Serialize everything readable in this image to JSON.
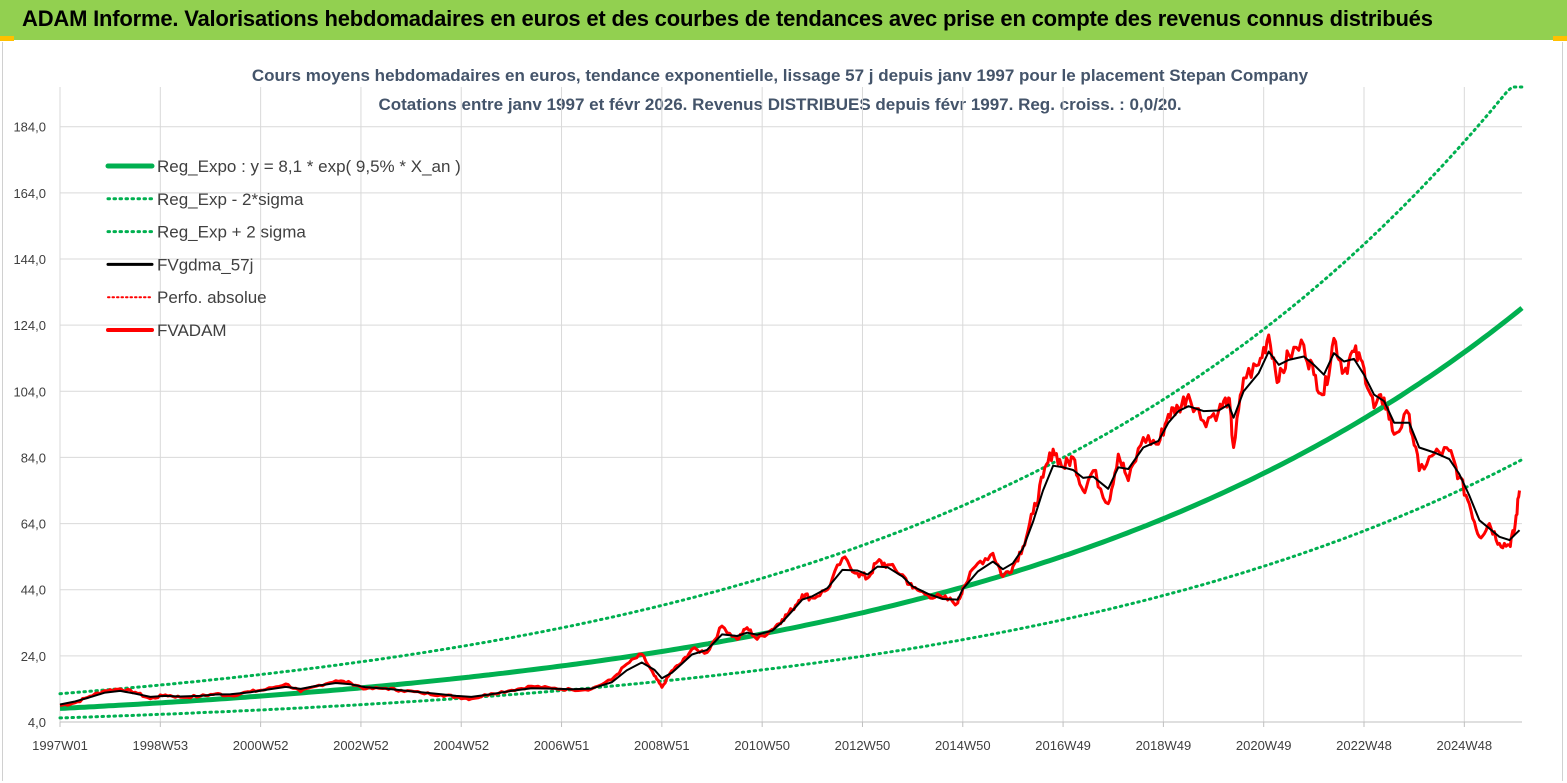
{
  "header": {
    "title": "ADAM Informe. Valorisations hebdomadaires en euros et des courbes de tendances avec prise en compte des revenus connus distribués"
  },
  "colors": {
    "header_bg": "#92d050",
    "header_accent": "#ffc000",
    "trend": "#00b050",
    "price": "#ff0000",
    "smooth": "#000000",
    "title": "#44546a"
  },
  "chart_data": {
    "type": "line",
    "title_line1": "Cours moyens hebdomadaires en euros, tendance exponentielle, lissage 57 j depuis janv 1997 pour le placement Stepan Company",
    "title_line2": "Cotations entre janv 1997 et févr 2026. Revenus DISTRIBUES depuis févr 1997. Reg. croiss. : 0,0/20.",
    "xlabel": "",
    "ylabel": "",
    "ylim": [
      4,
      196
    ],
    "yticks": [
      "4,0",
      "24,0",
      "44,0",
      "64,0",
      "84,0",
      "104,0",
      "124,0",
      "144,0",
      "164,0",
      "184,0"
    ],
    "xlim": [
      1997.0,
      2026.15
    ],
    "xticks": [
      {
        "label": "1997W01",
        "x": 1997.0
      },
      {
        "label": "1998W53",
        "x": 1999.0
      },
      {
        "label": "2000W52",
        "x": 2001.0
      },
      {
        "label": "2002W52",
        "x": 2003.0
      },
      {
        "label": "2004W52",
        "x": 2005.0
      },
      {
        "label": "2006W51",
        "x": 2007.0
      },
      {
        "label": "2008W51",
        "x": 2009.0
      },
      {
        "label": "2010W50",
        "x": 2011.0
      },
      {
        "label": "2012W50",
        "x": 2013.0
      },
      {
        "label": "2014W50",
        "x": 2015.0
      },
      {
        "label": "2016W49",
        "x": 2017.0
      },
      {
        "label": "2018W49",
        "x": 2019.0
      },
      {
        "label": "2020W49",
        "x": 2021.0
      },
      {
        "label": "2022W48",
        "x": 2023.0
      },
      {
        "label": "2024W48",
        "x": 2025.0
      }
    ],
    "grid": true,
    "legend_position": "top-left",
    "regression": {
      "a": 8.1,
      "rate": 0.095,
      "sigma_factor": 1.55
    },
    "series": [
      {
        "name": "Reg_Expo : y = 8,1 * exp( 9,5% *  X_an )",
        "style": "trend"
      },
      {
        "name": "Reg_Exp - 2*sigma",
        "style": "trend-low"
      },
      {
        "name": "Reg_Exp + 2 sigma",
        "style": "trend-high"
      },
      {
        "name": "FVgdma_57j",
        "style": "smooth"
      },
      {
        "name": "Perfo. absolue",
        "style": "dotted-red"
      },
      {
        "name": "FVADAM",
        "style": "price"
      }
    ],
    "price_x": [
      1997.0,
      1997.3,
      1997.6,
      1997.9,
      1998.2,
      1998.5,
      1998.8,
      1999.1,
      1999.4,
      1999.8,
      2000.1,
      2000.4,
      2000.8,
      2001.1,
      2001.5,
      2001.8,
      2002.1,
      2002.5,
      2002.8,
      2003.1,
      2003.5,
      2003.8,
      2004.2,
      2004.6,
      2004.9,
      2005.2,
      2005.6,
      2006.0,
      2006.4,
      2006.8,
      2007.2,
      2007.6,
      2008.0,
      2008.3,
      2008.6,
      2008.85,
      2009.0,
      2009.2,
      2009.4,
      2009.6,
      2009.9,
      2010.2,
      2010.5,
      2010.7,
      2010.9,
      2011.2,
      2011.4,
      2011.6,
      2011.8,
      2012.0,
      2012.3,
      2012.6,
      2012.9,
      2013.1,
      2013.3,
      2013.5,
      2013.8,
      2014.0,
      2014.3,
      2014.6,
      2014.9,
      2015.0,
      2015.3,
      2015.6,
      2015.8,
      2016.0,
      2016.2,
      2016.4,
      2016.6,
      2016.8,
      2017.0,
      2017.2,
      2017.4,
      2017.6,
      2017.9,
      2018.1,
      2018.3,
      2018.6,
      2018.9,
      2019.1,
      2019.3,
      2019.5,
      2019.8,
      2020.1,
      2020.3,
      2020.4,
      2020.6,
      2020.9,
      2021.1,
      2021.3,
      2021.5,
      2021.8,
      2022.0,
      2022.2,
      2022.4,
      2022.6,
      2022.8,
      2023.0,
      2023.2,
      2023.4,
      2023.6,
      2023.9,
      2024.1,
      2024.4,
      2024.7,
      2024.9,
      2025.1,
      2025.3,
      2025.5,
      2025.7,
      2025.9,
      2026.0,
      2026.1
    ],
    "price_y": [
      9.0,
      9.8,
      11.8,
      13.5,
      14.0,
      13.0,
      11.0,
      12.2,
      11.5,
      11.8,
      12.5,
      12.0,
      13.2,
      13.8,
      15.5,
      13.2,
      14.8,
      16.5,
      15.8,
      14.0,
      14.2,
      13.6,
      12.8,
      12.2,
      11.6,
      11.0,
      12.6,
      13.6,
      14.8,
      14.2,
      13.8,
      14.0,
      16.8,
      21.5,
      24.5,
      18.0,
      14.5,
      19.5,
      22.0,
      26.0,
      25.0,
      33.0,
      29.0,
      32.5,
      29.0,
      32.0,
      35.0,
      38.0,
      42.5,
      41.5,
      44.0,
      53.5,
      49.0,
      47.5,
      52.5,
      51.5,
      48.5,
      44.5,
      42.5,
      41.5,
      40.0,
      44.5,
      52.0,
      55.0,
      48.0,
      51.0,
      57.0,
      67.0,
      78.0,
      86.5,
      81.0,
      84.0,
      74.0,
      80.0,
      70.0,
      85.0,
      77.0,
      90.0,
      88.0,
      97.0,
      99.0,
      103.0,
      95.0,
      98.0,
      102.0,
      87.0,
      108.0,
      112.0,
      121.0,
      107.0,
      115.0,
      118.0,
      109.0,
      103.0,
      120.0,
      110.0,
      116.0,
      111.0,
      99.0,
      102.0,
      91.0,
      97.0,
      80.0,
      85.0,
      86.0,
      78.0,
      70.0,
      60.0,
      64.0,
      58.0,
      57.5,
      62.0,
      74.0
    ],
    "smooth_y": [
      9.3,
      10.2,
      11.5,
      12.9,
      13.4,
      12.6,
      11.6,
      11.9,
      11.7,
      11.9,
      12.3,
      12.4,
      13.0,
      13.7,
      14.6,
      14.0,
      14.9,
      15.8,
      15.4,
      14.5,
      14.1,
      13.6,
      13.0,
      12.4,
      11.9,
      11.6,
      12.4,
      13.4,
      14.2,
      14.1,
      13.9,
      14.1,
      16.0,
      19.6,
      22.0,
      19.8,
      17.2,
      18.9,
      21.6,
      24.4,
      25.8,
      30.5,
      30.0,
      31.0,
      30.4,
      31.6,
      34.2,
      37.6,
      41.0,
      42.0,
      44.5,
      50.0,
      49.8,
      48.6,
      51.0,
      50.8,
      48.0,
      45.0,
      42.8,
      41.2,
      41.0,
      44.2,
      49.5,
      52.5,
      50.2,
      52.0,
      56.5,
      64.5,
      74.0,
      81.5,
      81.0,
      80.2,
      77.8,
      78.2,
      74.5,
      81.0,
      80.5,
      87.0,
      89.0,
      94.5,
      98.0,
      99.5,
      98.0,
      98.2,
      100.0,
      96.0,
      104.0,
      109.5,
      116.0,
      112.0,
      113.5,
      114.5,
      112.0,
      109.0,
      115.5,
      113.0,
      113.8,
      109.0,
      103.0,
      101.0,
      94.5,
      94.5,
      87.0,
      85.5,
      83.5,
      79.0,
      72.5,
      65.0,
      62.5,
      60.0,
      59.0,
      60.5,
      62.0
    ]
  }
}
